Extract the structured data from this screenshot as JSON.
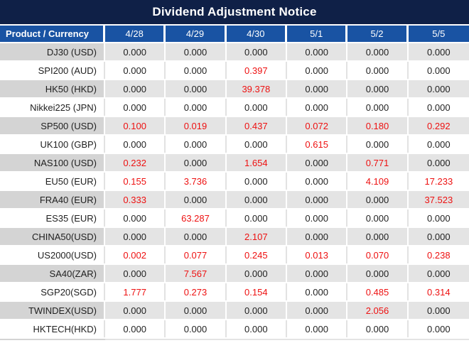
{
  "title": "Dividend Adjustment Notice",
  "table": {
    "product_header": "Product / Currency",
    "date_headers": [
      "4/28",
      "4/29",
      "4/30",
      "5/1",
      "5/2",
      "5/5"
    ],
    "rows": [
      {
        "product": "DJ30 (USD)",
        "values": [
          "0.000",
          "0.000",
          "0.000",
          "0.000",
          "0.000",
          "0.000"
        ],
        "red_indices": []
      },
      {
        "product": "SPI200 (AUD)",
        "values": [
          "0.000",
          "0.000",
          "0.397",
          "0.000",
          "0.000",
          "0.000"
        ],
        "red_indices": [
          2
        ]
      },
      {
        "product": "HK50 (HKD)",
        "values": [
          "0.000",
          "0.000",
          "39.378",
          "0.000",
          "0.000",
          "0.000"
        ],
        "red_indices": [
          2
        ]
      },
      {
        "product": "Nikkei225 (JPN)",
        "values": [
          "0.000",
          "0.000",
          "0.000",
          "0.000",
          "0.000",
          "0.000"
        ],
        "red_indices": []
      },
      {
        "product": "SP500 (USD)",
        "values": [
          "0.100",
          "0.019",
          "0.437",
          "0.072",
          "0.180",
          "0.292"
        ],
        "red_indices": [
          0,
          1,
          2,
          3,
          4,
          5
        ]
      },
      {
        "product": "UK100 (GBP)",
        "values": [
          "0.000",
          "0.000",
          "0.000",
          "0.615",
          "0.000",
          "0.000"
        ],
        "red_indices": [
          3
        ]
      },
      {
        "product": "NAS100 (USD)",
        "values": [
          "0.232",
          "0.000",
          "1.654",
          "0.000",
          "0.771",
          "0.000"
        ],
        "red_indices": [
          0,
          2,
          4
        ]
      },
      {
        "product": "EU50 (EUR)",
        "values": [
          "0.155",
          "3.736",
          "0.000",
          "0.000",
          "4.109",
          "17.233"
        ],
        "red_indices": [
          0,
          1,
          4,
          5
        ]
      },
      {
        "product": "FRA40 (EUR)",
        "values": [
          "0.333",
          "0.000",
          "0.000",
          "0.000",
          "0.000",
          "37.523"
        ],
        "red_indices": [
          0,
          5
        ]
      },
      {
        "product": "ES35 (EUR)",
        "values": [
          "0.000",
          "63.287",
          "0.000",
          "0.000",
          "0.000",
          "0.000"
        ],
        "red_indices": [
          1
        ]
      },
      {
        "product": "CHINA50(USD)",
        "values": [
          "0.000",
          "0.000",
          "2.107",
          "0.000",
          "0.000",
          "0.000"
        ],
        "red_indices": [
          2
        ]
      },
      {
        "product": "US2000(USD)",
        "values": [
          "0.002",
          "0.077",
          "0.245",
          "0.013",
          "0.070",
          "0.238"
        ],
        "red_indices": [
          0,
          1,
          2,
          3,
          4,
          5
        ]
      },
      {
        "product": "SA40(ZAR)",
        "values": [
          "0.000",
          "7.567",
          "0.000",
          "0.000",
          "0.000",
          "0.000"
        ],
        "red_indices": [
          1
        ]
      },
      {
        "product": "SGP20(SGD)",
        "values": [
          "1.777",
          "0.273",
          "0.154",
          "0.000",
          "0.485",
          "0.314"
        ],
        "red_indices": [
          0,
          1,
          2,
          4,
          5
        ]
      },
      {
        "product": "TWINDEX(USD)",
        "values": [
          "0.000",
          "0.000",
          "0.000",
          "0.000",
          "2.056",
          "0.000"
        ],
        "red_indices": [
          4
        ]
      },
      {
        "product": "HKTECH(HKD)",
        "values": [
          "0.000",
          "0.000",
          "0.000",
          "0.000",
          "0.000",
          "0.000"
        ],
        "red_indices": []
      }
    ]
  },
  "colors": {
    "title_bg": "#0f2047",
    "header_bg": "#1953a3",
    "header_text": "#ffffff",
    "stripe_product_bg": "#d4d4d4",
    "stripe_value_bg": "#e4e4e4",
    "highlight_red": "#ee1111",
    "text_dark": "#1f1f1f"
  }
}
